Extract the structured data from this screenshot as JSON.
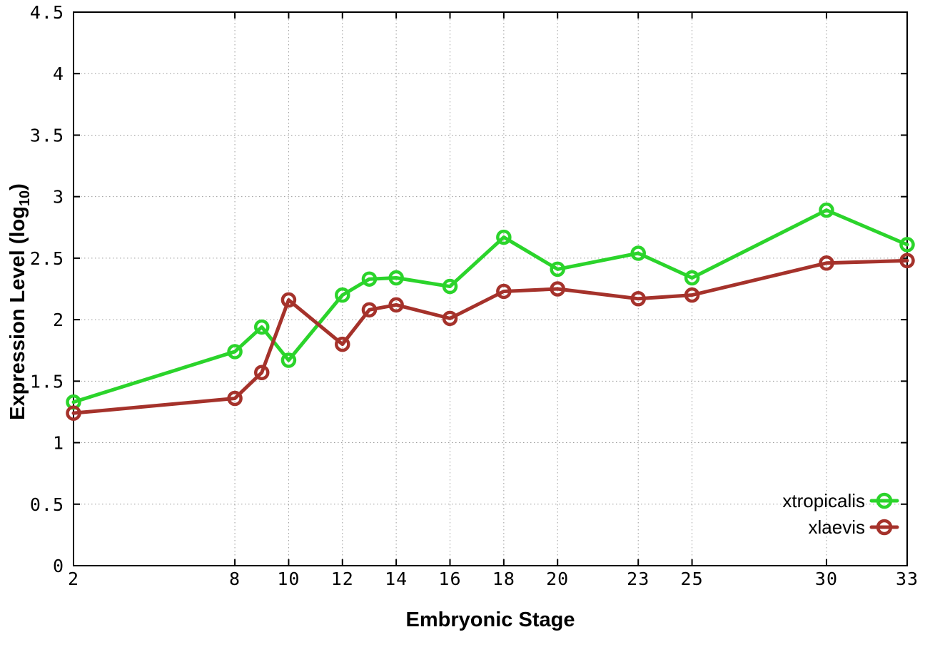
{
  "chart_data": {
    "type": "line",
    "title": "",
    "xlabel": "Embryonic Stage",
    "ylabel": "Expression Level (log10)",
    "ylabel_parts": {
      "main": "Expression Level (log",
      "sub": "10",
      "end": ")"
    },
    "x": [
      2,
      8,
      9,
      10,
      12,
      13,
      14,
      16,
      18,
      20,
      23,
      25,
      30,
      33
    ],
    "series": [
      {
        "name": "xtropicalis",
        "color": "#2bd42b",
        "values": [
          1.33,
          1.74,
          1.94,
          1.67,
          2.2,
          2.33,
          2.34,
          2.27,
          2.67,
          2.41,
          2.54,
          2.34,
          2.89,
          2.61
        ]
      },
      {
        "name": "xlaevis",
        "color": "#a5322b",
        "values": [
          1.24,
          1.36,
          1.57,
          2.16,
          1.8,
          2.08,
          2.12,
          2.01,
          2.23,
          2.25,
          2.17,
          2.2,
          2.46,
          2.48
        ]
      }
    ],
    "xticks": [
      "2",
      "8",
      "10",
      "12",
      "14",
      "16",
      "18",
      "20",
      "23",
      "25",
      "30",
      "33"
    ],
    "yticks": [
      "0",
      "0.5",
      "1",
      "1.5",
      "2",
      "2.5",
      "3",
      "3.5",
      "4",
      "4.5"
    ],
    "xlim": [
      2,
      33
    ],
    "ylim": [
      0,
      4.5
    ],
    "grid": true,
    "legend_position": "inside-bottom-right",
    "marker": "open-circle",
    "colors": {
      "background": "#ffffff",
      "grid": "#9a9a9a",
      "axis": "#000000",
      "xtropicalis": "#2bd42b",
      "xlaevis": "#a5322b"
    }
  }
}
